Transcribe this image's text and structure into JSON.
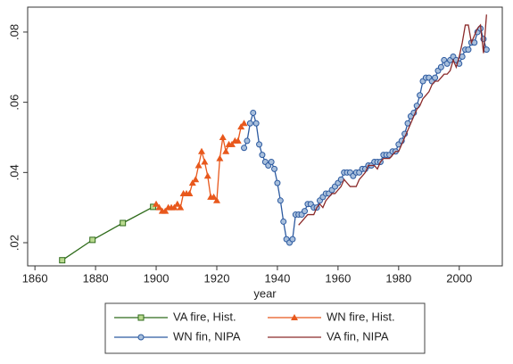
{
  "chart_data": {
    "type": "line",
    "x_label": "year",
    "xlim": [
      1857.6,
      2014.2
    ],
    "xticks": [
      1860,
      1880,
      1900,
      1920,
      1940,
      1960,
      1980,
      2000
    ],
    "ylim": [
      0.0134,
      0.0871
    ],
    "yticks": [
      {
        "value": 0.02,
        "label": ".02"
      },
      {
        "value": 0.04,
        "label": ".04"
      },
      {
        "value": 0.06,
        "label": ".06"
      },
      {
        "value": 0.08,
        "label": ".08"
      }
    ],
    "grid": false,
    "legend": "bottom",
    "series": [
      {
        "name": "VA fire, Hist.",
        "color": "#2e6b1a",
        "marker": "square",
        "x": [
          1869,
          1879,
          1889,
          1899
        ],
        "values": [
          0.015,
          0.0208,
          0.0256,
          0.0302
        ]
      },
      {
        "name": "WN fire, Hist.",
        "color": "#e8581c",
        "marker": "triangle",
        "x": [
          1900,
          1901,
          1902,
          1903,
          1904,
          1905,
          1906,
          1907,
          1908,
          1909,
          1910,
          1911,
          1912,
          1913,
          1914,
          1915,
          1916,
          1917,
          1918,
          1919,
          1920,
          1921,
          1922,
          1923,
          1924,
          1925,
          1926,
          1927,
          1928,
          1929
        ],
        "values": [
          0.031,
          0.03,
          0.029,
          0.029,
          0.03,
          0.03,
          0.03,
          0.031,
          0.03,
          0.034,
          0.034,
          0.034,
          0.037,
          0.038,
          0.042,
          0.046,
          0.043,
          0.039,
          0.033,
          0.033,
          0.032,
          0.044,
          0.05,
          0.046,
          0.048,
          0.048,
          0.049,
          0.049,
          0.053,
          0.054
        ]
      },
      {
        "name": "WN fin, NIPA",
        "color": "#2c5aa0",
        "marker": "circle",
        "x": [
          1929,
          1930,
          1931,
          1932,
          1933,
          1934,
          1935,
          1936,
          1937,
          1938,
          1939,
          1940,
          1941,
          1942,
          1943,
          1944,
          1945,
          1946,
          1947,
          1948,
          1949,
          1950,
          1951,
          1952,
          1953,
          1954,
          1955,
          1956,
          1957,
          1958,
          1959,
          1960,
          1961,
          1962,
          1963,
          1964,
          1965,
          1966,
          1967,
          1968,
          1969,
          1970,
          1971,
          1972,
          1973,
          1974,
          1975,
          1976,
          1977,
          1978,
          1979,
          1980,
          1981,
          1982,
          1983,
          1984,
          1985,
          1986,
          1987,
          1988,
          1989,
          1990,
          1991,
          1992,
          1993,
          1994,
          1995,
          1996,
          1997,
          1998,
          1999,
          2000,
          2001,
          2002,
          2003,
          2004,
          2005,
          2006,
          2007,
          2008,
          2009
        ],
        "values": [
          0.047,
          0.049,
          0.054,
          0.057,
          0.054,
          0.048,
          0.045,
          0.043,
          0.042,
          0.043,
          0.041,
          0.037,
          0.032,
          0.026,
          0.021,
          0.02,
          0.021,
          0.028,
          0.028,
          0.028,
          0.029,
          0.031,
          0.031,
          0.03,
          0.03,
          0.032,
          0.033,
          0.034,
          0.034,
          0.035,
          0.036,
          0.037,
          0.038,
          0.04,
          0.04,
          0.04,
          0.039,
          0.04,
          0.04,
          0.041,
          0.041,
          0.042,
          0.042,
          0.043,
          0.043,
          0.043,
          0.045,
          0.045,
          0.045,
          0.046,
          0.046,
          0.048,
          0.049,
          0.051,
          0.054,
          0.056,
          0.057,
          0.059,
          0.062,
          0.066,
          0.067,
          0.067,
          0.066,
          0.067,
          0.069,
          0.07,
          0.072,
          0.071,
          0.072,
          0.073,
          0.072,
          0.071,
          0.073,
          0.075,
          0.075,
          0.077,
          0.077,
          0.08,
          0.081,
          0.078,
          0.075
        ]
      },
      {
        "name": "VA fin, NIPA",
        "color": "#8b2a2a",
        "marker": "none",
        "x": [
          1947,
          1948,
          1949,
          1950,
          1951,
          1952,
          1953,
          1954,
          1955,
          1956,
          1957,
          1958,
          1959,
          1960,
          1961,
          1962,
          1963,
          1964,
          1965,
          1966,
          1967,
          1968,
          1969,
          1970,
          1971,
          1972,
          1973,
          1974,
          1975,
          1976,
          1977,
          1978,
          1979,
          1980,
          1981,
          1982,
          1983,
          1984,
          1985,
          1986,
          1987,
          1988,
          1989,
          1990,
          1991,
          1992,
          1993,
          1994,
          1995,
          1996,
          1997,
          1998,
          1999,
          2000,
          2001,
          2002,
          2003,
          2004,
          2005,
          2006,
          2007,
          2008,
          2009
        ],
        "values": [
          0.025,
          0.026,
          0.027,
          0.028,
          0.028,
          0.028,
          0.03,
          0.031,
          0.03,
          0.032,
          0.033,
          0.034,
          0.034,
          0.035,
          0.036,
          0.038,
          0.037,
          0.036,
          0.036,
          0.036,
          0.038,
          0.039,
          0.04,
          0.042,
          0.042,
          0.042,
          0.041,
          0.043,
          0.044,
          0.044,
          0.044,
          0.045,
          0.046,
          0.046,
          0.048,
          0.05,
          0.052,
          0.054,
          0.056,
          0.058,
          0.059,
          0.061,
          0.062,
          0.063,
          0.065,
          0.066,
          0.066,
          0.067,
          0.068,
          0.068,
          0.069,
          0.072,
          0.07,
          0.073,
          0.077,
          0.082,
          0.082,
          0.077,
          0.079,
          0.081,
          0.082,
          0.074,
          0.085
        ]
      }
    ]
  }
}
